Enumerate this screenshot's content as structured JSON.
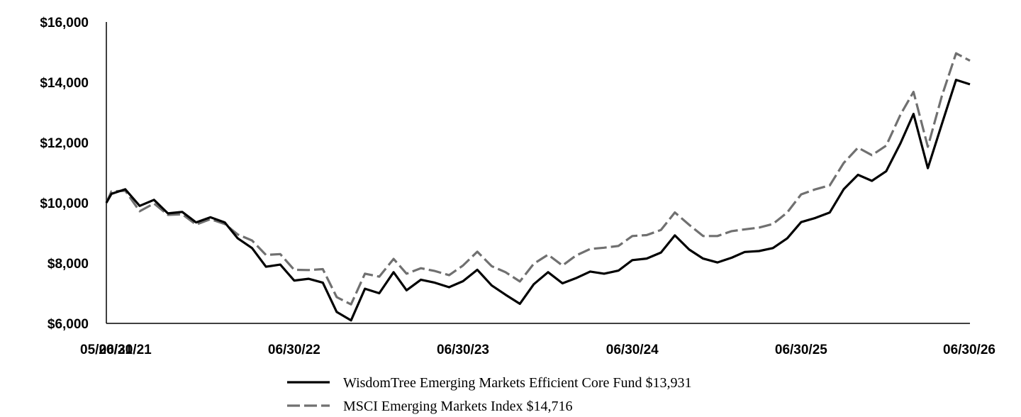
{
  "chart_data": {
    "type": "line",
    "title": "",
    "xlabel": "",
    "ylabel": "",
    "ylim": [
      6000,
      16000
    ],
    "y_ticks": [
      6000,
      8000,
      10000,
      12000,
      14000,
      16000
    ],
    "y_tick_labels": [
      "$6,000",
      "$8,000",
      "$10,000",
      "$12,000",
      "$14,000",
      "$16,000"
    ],
    "x_tick_labels": [
      "05/20/21",
      "06/30/21",
      "06/30/22",
      "06/30/23",
      "06/30/24",
      "06/30/25",
      "06/30/26"
    ],
    "x_tick_dates": [
      "2021-05-20",
      "2021-06-30",
      "2022-06-30",
      "2023-06-30",
      "2024-06-30",
      "2025-06-30",
      "2026-06-30"
    ],
    "x": [
      "2021-05-20",
      "2021-05-31",
      "2021-06-30",
      "2021-07-31",
      "2021-08-31",
      "2021-09-30",
      "2021-10-31",
      "2021-11-30",
      "2021-12-31",
      "2022-01-31",
      "2022-02-28",
      "2022-03-31",
      "2022-04-30",
      "2022-05-31",
      "2022-06-30",
      "2022-07-31",
      "2022-08-31",
      "2022-09-30",
      "2022-10-31",
      "2022-11-30",
      "2022-12-31",
      "2023-01-31",
      "2023-02-28",
      "2023-03-31",
      "2023-04-30",
      "2023-05-31",
      "2023-06-30",
      "2023-07-31",
      "2023-08-31",
      "2023-09-30",
      "2023-10-31",
      "2023-11-30",
      "2023-12-31",
      "2024-01-31",
      "2024-02-29",
      "2024-03-31",
      "2024-04-30",
      "2024-05-31",
      "2024-06-30",
      "2024-07-31",
      "2024-08-31",
      "2024-09-30",
      "2024-10-31",
      "2024-11-30",
      "2024-12-31",
      "2025-01-31",
      "2025-02-28",
      "2025-03-31",
      "2025-04-30",
      "2025-05-31",
      "2025-06-30",
      "2025-07-31",
      "2025-08-31",
      "2025-09-30",
      "2025-10-31",
      "2025-11-30",
      "2025-12-31",
      "2026-01-31",
      "2026-02-28",
      "2026-03-31",
      "2026-04-30",
      "2026-05-31",
      "2026-06-30"
    ],
    "series": [
      {
        "name": "WisdomTree Emerging Markets Efficient Core Fund $13,931",
        "color": "#000000",
        "dash": "solid",
        "values": [
          10000,
          10300,
          10450,
          9900,
          10100,
          9650,
          9700,
          9350,
          9520,
          9350,
          8820,
          8500,
          7880,
          7950,
          7420,
          7480,
          7350,
          6380,
          6100,
          7150,
          7000,
          7700,
          7100,
          7450,
          7350,
          7200,
          7400,
          7780,
          7260,
          6950,
          6650,
          7300,
          7700,
          7330,
          7500,
          7720,
          7650,
          7750,
          8100,
          8150,
          8350,
          8920,
          8450,
          8150,
          8020,
          8180,
          8370,
          8400,
          8500,
          8820,
          9360,
          9500,
          9680,
          10450,
          10930,
          10730,
          11050,
          11980,
          12950,
          11150,
          12600,
          14080,
          13931
        ]
      },
      {
        "name": "MSCI Emerging Markets Index $14,716",
        "color": "#707070",
        "dash": "dashed",
        "values": [
          10000,
          10380,
          10400,
          9720,
          9980,
          9600,
          9620,
          9280,
          9460,
          9300,
          8950,
          8750,
          8270,
          8300,
          7780,
          7770,
          7800,
          6870,
          6630,
          7650,
          7550,
          8140,
          7650,
          7830,
          7740,
          7600,
          7920,
          8380,
          7900,
          7700,
          7390,
          7980,
          8280,
          7920,
          8250,
          8470,
          8510,
          8570,
          8900,
          8930,
          9100,
          9680,
          9270,
          8900,
          8900,
          9060,
          9120,
          9180,
          9300,
          9680,
          10280,
          10450,
          10580,
          11320,
          11830,
          11580,
          11900,
          12930,
          13680,
          11860,
          13530,
          14960,
          14716
        ]
      }
    ],
    "legend_position": "bottom-center",
    "grid": false
  }
}
